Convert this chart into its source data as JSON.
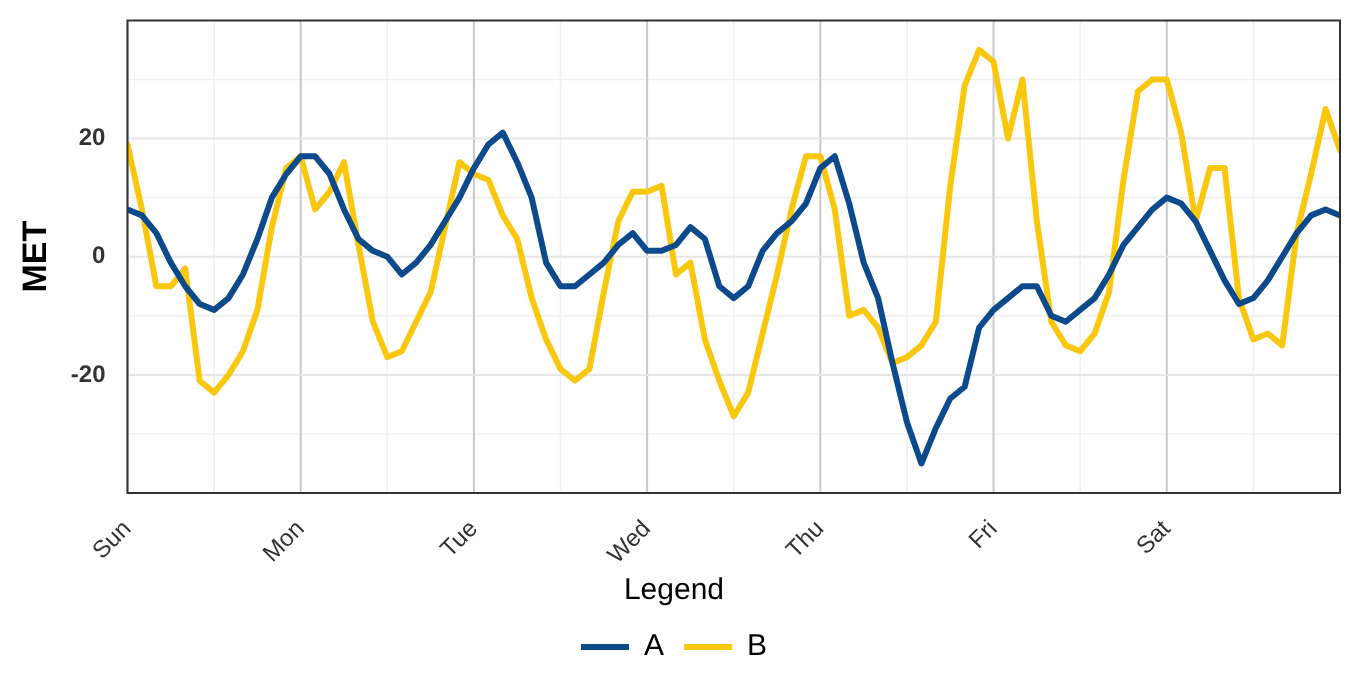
{
  "chart_data": {
    "type": "line",
    "ylabel": "MET",
    "legend_title": "Legend",
    "legend": "bottom",
    "grid": true,
    "marker": "none",
    "line_style": "solid",
    "categories": [
      "Sun",
      null,
      null,
      null,
      null,
      null,
      null,
      null,
      null,
      null,
      null,
      null,
      "Mon",
      null,
      null,
      null,
      null,
      null,
      null,
      null,
      null,
      null,
      null,
      null,
      "Tue",
      null,
      null,
      null,
      null,
      null,
      null,
      null,
      null,
      null,
      null,
      null,
      "Wed",
      null,
      null,
      null,
      null,
      null,
      null,
      null,
      null,
      null,
      null,
      null,
      "Thu",
      null,
      null,
      null,
      null,
      null,
      null,
      null,
      null,
      null,
      null,
      null,
      "Fri",
      null,
      null,
      null,
      null,
      null,
      null,
      null,
      null,
      null,
      null,
      null,
      "Sat",
      null,
      null,
      null,
      null,
      null,
      null,
      null,
      null,
      null,
      null,
      null,
      null
    ],
    "ylim": [
      -40,
      40
    ],
    "yticks": [
      -20,
      0,
      20
    ],
    "series": [
      {
        "name": "A",
        "color": "#0c4a8c",
        "values": [
          8,
          7,
          4,
          -1,
          -5,
          -8,
          -9,
          -7,
          -3,
          3,
          10,
          14,
          17,
          17,
          14,
          8,
          3,
          1,
          0,
          -3,
          -1,
          2,
          6,
          10,
          15,
          19,
          21,
          16,
          10,
          -1,
          -5,
          -5,
          -3,
          -1,
          2,
          4,
          1,
          1,
          2,
          5,
          3,
          -5,
          -7,
          -5,
          1,
          4,
          6,
          9,
          15,
          17,
          9,
          -1,
          -7,
          -18,
          -28,
          -35,
          -29,
          -24,
          -22,
          -12,
          -9,
          -7,
          -5,
          -5,
          -10,
          -11,
          -9,
          -7,
          -3,
          2,
          5,
          8,
          10,
          9,
          6,
          1,
          -4,
          -8,
          -7,
          -4,
          0,
          4,
          7,
          8,
          7
        ]
      },
      {
        "name": "B",
        "color": "#f9c80e",
        "values": [
          19,
          8,
          -5,
          -5,
          -2,
          -21,
          -23,
          -20,
          -16,
          -9,
          5,
          15,
          17,
          8,
          11,
          16,
          2,
          -11,
          -17,
          -16,
          -11,
          -6,
          5,
          16,
          14,
          13,
          7,
          3,
          -7,
          -14,
          -19,
          -21,
          -19,
          -6,
          6,
          11,
          11,
          12,
          -3,
          -1,
          -14,
          -21,
          -27,
          -23,
          -13,
          -3,
          8,
          17,
          17,
          8,
          -10,
          -9,
          -12,
          -18,
          -17,
          -15,
          -11,
          12,
          29,
          35,
          33,
          20,
          30,
          6,
          -11,
          -15,
          -16,
          -13,
          -6,
          13,
          28,
          30,
          30,
          21,
          6,
          15,
          15,
          -7,
          -14,
          -13,
          -15,
          4,
          14,
          25,
          18
        ]
      }
    ]
  }
}
